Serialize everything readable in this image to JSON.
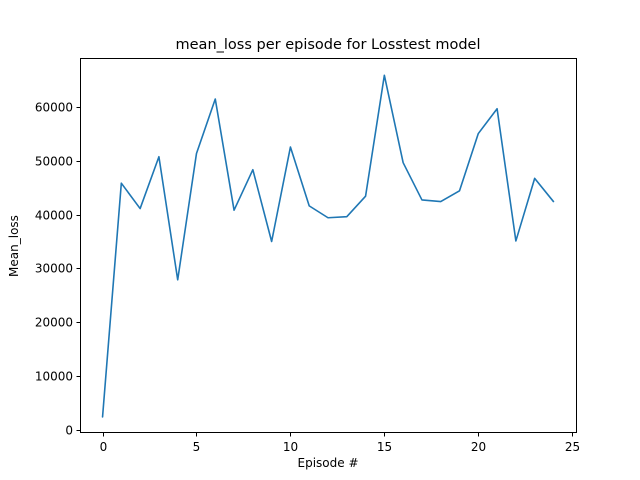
{
  "chart_data": {
    "type": "line",
    "title": "mean_loss per episode for Losstest model",
    "xlabel": "Episode #",
    "ylabel": "Mean_loss",
    "xlim": [
      -1.2,
      25.2
    ],
    "ylim": [
      -300,
      69000
    ],
    "xticks": [
      0,
      5,
      10,
      15,
      20,
      25
    ],
    "yticks": [
      0,
      10000,
      20000,
      30000,
      40000,
      50000,
      60000
    ],
    "grid": false,
    "series": [
      {
        "color": "#1f77b4",
        "x": [
          0,
          1,
          2,
          3,
          4,
          5,
          6,
          7,
          8,
          9,
          10,
          11,
          12,
          13,
          14,
          15,
          16,
          17,
          18,
          19,
          20,
          21,
          22,
          23,
          24
        ],
        "y": [
          2500,
          45800,
          41100,
          50700,
          27900,
          51300,
          61400,
          40800,
          48300,
          35000,
          52500,
          41600,
          39400,
          39600,
          43400,
          65800,
          49600,
          42700,
          42400,
          44400,
          55000,
          59600,
          35100,
          46700,
          42400
        ]
      }
    ]
  }
}
